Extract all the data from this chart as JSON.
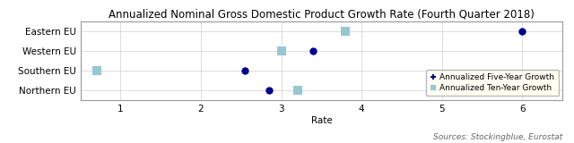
{
  "title": "Annualized Nominal Gross Domestic Product Growth Rate (Fourth Quarter 2018)",
  "xlabel": "Rate",
  "source_text": "Sources: Stockingblue, Eurostat",
  "categories": [
    "Eastern EU",
    "Western EU",
    "Southern EU",
    "Northern EU"
  ],
  "five_year_growth": [
    6.0,
    3.4,
    2.55,
    2.85
  ],
  "ten_year_growth": [
    3.8,
    3.0,
    0.7,
    3.2
  ],
  "dot_color": "#00008B",
  "square_color": "#96C8D2",
  "xlim": [
    0.5,
    6.5
  ],
  "xticks": [
    1,
    2,
    3,
    4,
    5,
    6
  ],
  "background_color": "#FFFFFF",
  "plot_bg_color": "#FFFFFF",
  "legend_bg": "#FFFFF0",
  "title_fontsize": 8.5,
  "axis_fontsize": 7.5,
  "legend_fontsize": 6.5,
  "source_fontsize": 6.5
}
